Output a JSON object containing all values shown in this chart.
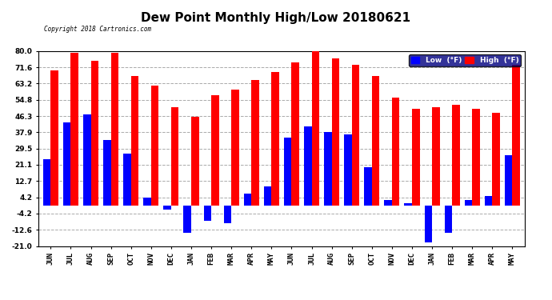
{
  "title": "Dew Point Monthly High/Low 20180621",
  "copyright": "Copyright 2018 Cartronics.com",
  "months": [
    "JUN",
    "JUL",
    "AUG",
    "SEP",
    "OCT",
    "NOV",
    "DEC",
    "JAN",
    "FEB",
    "MAR",
    "APR",
    "MAY",
    "JUN",
    "JUL",
    "AUG",
    "SEP",
    "OCT",
    "NOV",
    "DEC",
    "JAN",
    "FEB",
    "MAR",
    "APR",
    "MAY"
  ],
  "high": [
    70,
    79,
    75,
    79,
    67,
    62,
    51,
    46,
    57,
    60,
    65,
    69,
    74,
    80,
    76,
    73,
    67,
    56,
    50,
    51,
    52,
    50,
    48,
    73
  ],
  "low": [
    24,
    43,
    47,
    34,
    27,
    4,
    -2,
    -14,
    -8,
    -9,
    6,
    10,
    35,
    41,
    38,
    37,
    20,
    3,
    1,
    -19,
    -14,
    3,
    5,
    26
  ],
  "ylim": [
    -21,
    80
  ],
  "yticks": [
    -21.0,
    -12.6,
    -4.2,
    4.2,
    12.7,
    21.1,
    29.5,
    37.9,
    46.3,
    54.8,
    63.2,
    71.6,
    80.0
  ],
  "bar_width": 0.38,
  "high_color": "#FF0000",
  "low_color": "#0000FF",
  "bg_color": "#FFFFFF",
  "grid_color": "#AAAAAA",
  "title_fontsize": 11,
  "tick_fontsize": 6.5,
  "legend_low_label": "Low  (°F)",
  "legend_high_label": "High  (°F)"
}
